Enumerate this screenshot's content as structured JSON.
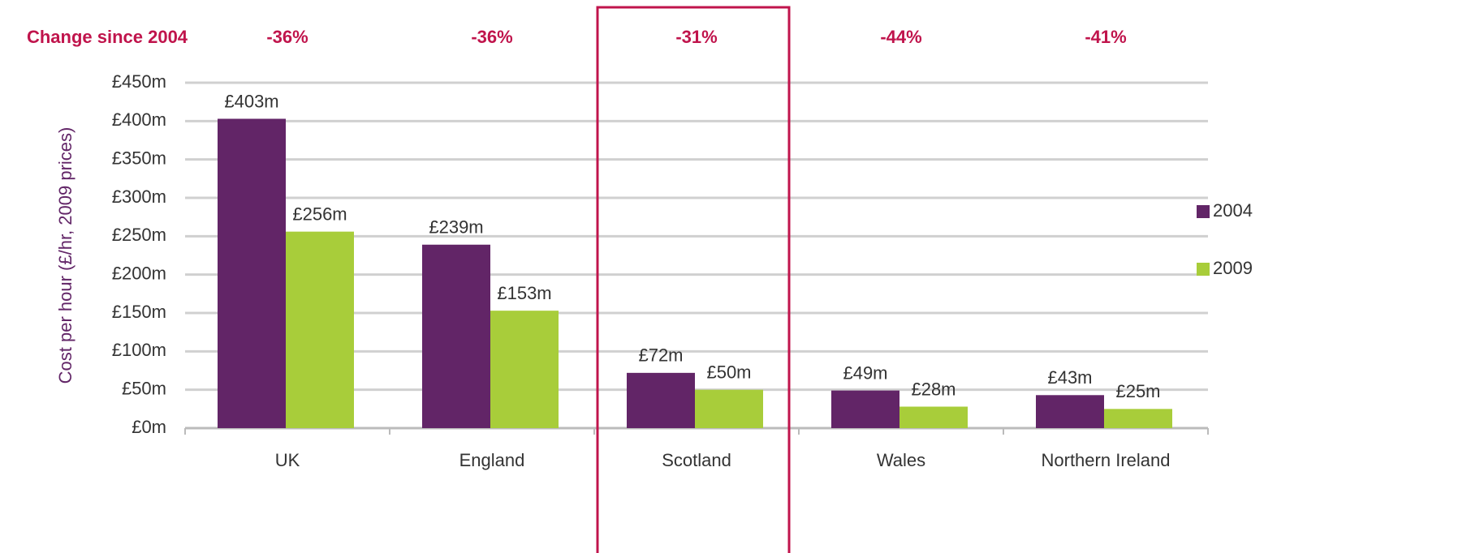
{
  "chart_data": {
    "type": "bar",
    "ylabel": "Cost per hour (£/hr, 2009 prices)",
    "categories": [
      "UK",
      "England",
      "Scotland",
      "Wales",
      "Northern Ireland"
    ],
    "series": [
      {
        "name": "2004",
        "color": "#622567",
        "values": [
          403,
          239,
          72,
          49,
          43
        ],
        "value_labels": [
          "£403m",
          "£239m",
          "£72m",
          "£49m",
          "£43m"
        ]
      },
      {
        "name": "2009",
        "color": "#a8cd3a",
        "values": [
          256,
          153,
          50,
          28,
          25
        ],
        "value_labels": [
          "£256m",
          "£153m",
          "£50m",
          "£28m",
          "£25m"
        ]
      }
    ],
    "changes": {
      "label": "Change since 2004",
      "values": [
        -36,
        -36,
        -31,
        -44,
        -41
      ],
      "value_labels": [
        "-36%",
        "-36%",
        "-31%",
        "-44%",
        "-41%"
      ],
      "color": "#c0144c"
    },
    "highlight_index": 2,
    "ylim": [
      0,
      450
    ],
    "yticks": [
      {
        "value": 0,
        "label": "£0m"
      },
      {
        "value": 50,
        "label": "£50m"
      },
      {
        "value": 100,
        "label": "£100m"
      },
      {
        "value": 150,
        "label": "£150m"
      },
      {
        "value": 200,
        "label": "£200m"
      },
      {
        "value": 250,
        "label": "£250m"
      },
      {
        "value": 300,
        "label": "£300m"
      },
      {
        "value": 350,
        "label": "£350m"
      },
      {
        "value": 400,
        "label": "£400m"
      },
      {
        "value": 450,
        "label": "£450m"
      }
    ],
    "grid": true,
    "legend": "right"
  }
}
